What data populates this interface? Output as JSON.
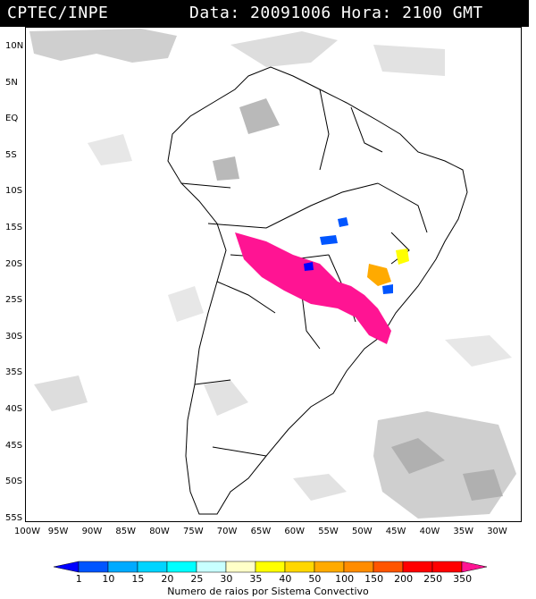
{
  "header": {
    "source": "CPTEC/INPE",
    "datetime": "Data: 20091006 Hora: 2100 GMT"
  },
  "map": {
    "lat_labels": [
      "10N",
      "5N",
      "EQ",
      "5S",
      "10S",
      "15S",
      "20S",
      "25S",
      "30S",
      "35S",
      "40S",
      "45S",
      "50S",
      "55S"
    ],
    "lon_labels": [
      "100W",
      "95W",
      "90W",
      "85W",
      "80W",
      "75W",
      "70W",
      "65W",
      "60W",
      "55W",
      "50W",
      "45W",
      "40W",
      "35W",
      "30W"
    ],
    "extent": {
      "lon_min": -100,
      "lon_max": -27,
      "lat_max": 12,
      "lat_min": -56
    }
  },
  "colorbar": {
    "ticks": [
      "1",
      "10",
      "15",
      "20",
      "25",
      "30",
      "35",
      "40",
      "50",
      "100",
      "150",
      "200",
      "250",
      "350"
    ],
    "colors": [
      "#0000ff",
      "#0055ff",
      "#00aaff",
      "#00d4ff",
      "#00ffff",
      "#c8ffff",
      "#ffffc8",
      "#ffff00",
      "#ffd700",
      "#ffaa00",
      "#ff8c00",
      "#ff5500",
      "#ff0000",
      "#ff1493"
    ],
    "caption": "Numero de raios por Sistema Convectivo"
  },
  "colors": {
    "background": "#ffffff",
    "header_bg": "#000000",
    "cloud": "#cfcfcf",
    "cloud_dark": "#a8a8a8",
    "land_outline": "#000000"
  }
}
